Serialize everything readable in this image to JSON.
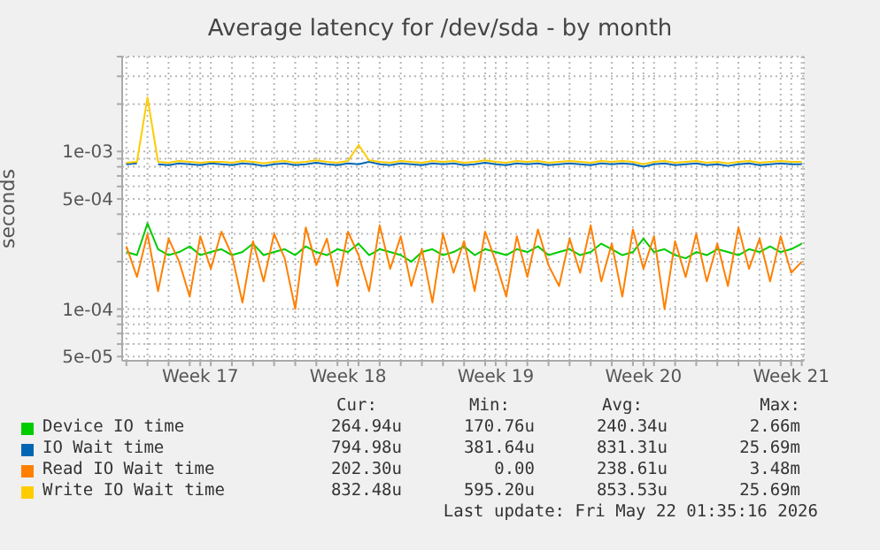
{
  "chart_data": {
    "type": "line",
    "title": "Average latency for /dev/sda - by month",
    "ylabel": "seconds",
    "log": true,
    "grid": true,
    "legend": "bottom",
    "marker": "none",
    "categories": [
      null,
      null,
      null,
      null,
      null,
      null,
      null,
      "Week 17",
      null,
      null,
      null,
      null,
      null,
      null,
      null,
      null,
      null,
      null,
      null,
      null,
      null,
      "Week 18",
      null,
      null,
      null,
      null,
      null,
      null,
      null,
      null,
      null,
      null,
      null,
      null,
      null,
      "Week 19",
      null,
      null,
      null,
      null,
      null,
      null,
      null,
      null,
      null,
      null,
      null,
      null,
      null,
      "Week 20",
      null,
      null,
      null,
      null,
      null,
      null,
      null,
      null,
      null,
      null,
      null,
      null,
      null,
      "Week 21",
      null
    ],
    "ylim": [
      4.7e-05,
      0.004
    ],
    "yticks": [
      {
        "value": 5e-05,
        "label": "5e-05"
      },
      {
        "value": 6e-05,
        "label": null
      },
      {
        "value": 7e-05,
        "label": null
      },
      {
        "value": 8e-05,
        "label": null
      },
      {
        "value": 9e-05,
        "label": null
      },
      {
        "value": 0.0001,
        "label": "1e-04"
      },
      {
        "value": 0.0002,
        "label": null
      },
      {
        "value": 0.0003,
        "label": null
      },
      {
        "value": 0.0004,
        "label": null
      },
      {
        "value": 0.0005,
        "label": "5e-04"
      },
      {
        "value": 0.0006,
        "label": null
      },
      {
        "value": 0.0007,
        "label": null
      },
      {
        "value": 0.0008,
        "label": null
      },
      {
        "value": 0.0009,
        "label": null
      },
      {
        "value": 0.001,
        "label": "1e-03"
      },
      {
        "value": 0.002,
        "label": null
      },
      {
        "value": 0.003,
        "label": null
      },
      {
        "value": 0.004,
        "label": null
      }
    ],
    "series": [
      {
        "name": "Device IO time",
        "color": "#00cc00",
        "values": [
          0.00023,
          0.00022,
          0.00035,
          0.00024,
          0.00022,
          0.00023,
          0.00025,
          0.00022,
          0.00023,
          0.00024,
          0.00022,
          0.00023,
          0.00026,
          0.00022,
          0.00023,
          0.00024,
          0.00022,
          0.00025,
          0.00023,
          0.00022,
          0.00024,
          0.00023,
          0.00026,
          0.00022,
          0.00024,
          0.00023,
          0.00022,
          0.0002,
          0.00023,
          0.00024,
          0.00022,
          0.00023,
          0.00025,
          0.00022,
          0.00024,
          0.00023,
          0.00022,
          0.00024,
          0.00023,
          0.00025,
          0.00022,
          0.00023,
          0.00024,
          0.00022,
          0.00023,
          0.00026,
          0.00024,
          0.00022,
          0.00023,
          0.00028,
          0.00023,
          0.00024,
          0.00022,
          0.00021,
          0.00023,
          0.00022,
          0.00024,
          0.00023,
          0.00022,
          0.00024,
          0.00023,
          0.00025,
          0.00023,
          0.00024,
          0.00026
        ]
      },
      {
        "name": "IO Wait time",
        "color": "#0066b3",
        "values": [
          0.00083,
          0.00084,
          null,
          0.00083,
          0.00082,
          0.00084,
          0.00083,
          0.00082,
          0.00084,
          0.00083,
          0.00082,
          0.00084,
          0.00083,
          0.00081,
          0.00083,
          0.00084,
          0.00082,
          0.00083,
          0.00085,
          0.00083,
          0.00082,
          0.00084,
          0.00083,
          0.00086,
          0.00083,
          0.00082,
          0.00084,
          0.00083,
          0.00082,
          0.00084,
          0.00083,
          0.00084,
          0.00082,
          0.00083,
          0.00085,
          0.00083,
          0.00082,
          0.00084,
          0.00083,
          0.00084,
          0.00082,
          0.00083,
          0.00084,
          0.00083,
          0.00082,
          0.00084,
          0.00083,
          0.00084,
          0.00083,
          0.0008,
          0.00083,
          0.00084,
          0.00082,
          0.00083,
          0.00084,
          0.00082,
          0.00083,
          0.00081,
          0.00083,
          0.00084,
          0.00082,
          0.00083,
          0.00084,
          0.00083,
          0.00083
        ]
      },
      {
        "name": "Read IO Wait time",
        "color": "#ff8000",
        "values": [
          0.00025,
          0.00016,
          0.0003,
          0.00013,
          0.00028,
          0.0002,
          0.00012,
          0.00029,
          0.00018,
          0.00031,
          0.00022,
          0.00011,
          0.00027,
          0.00015,
          0.0003,
          0.00021,
          0.0001,
          0.00033,
          0.00019,
          0.00028,
          0.00014,
          0.00031,
          0.00022,
          0.00013,
          0.00034,
          0.00018,
          0.00029,
          0.00014,
          0.00024,
          0.00011,
          0.0003,
          0.00017,
          0.00027,
          0.00013,
          0.00031,
          0.0002,
          0.00012,
          0.00029,
          0.00016,
          0.00032,
          0.00019,
          0.00014,
          0.00028,
          0.00017,
          0.00034,
          0.00015,
          0.00026,
          0.00012,
          0.00032,
          0.00018,
          0.00029,
          0.0001,
          0.00027,
          0.00016,
          0.0003,
          0.00015,
          0.00026,
          0.00014,
          0.00033,
          0.00018,
          0.00028,
          0.00015,
          0.00029,
          0.00017,
          0.0002
        ]
      },
      {
        "name": "Write IO Wait time",
        "color": "#ffcc00",
        "values": [
          0.00085,
          0.00086,
          0.0022,
          0.00086,
          0.00085,
          0.00087,
          0.00086,
          0.00085,
          0.00086,
          0.00086,
          0.00085,
          0.00087,
          0.00086,
          0.00084,
          0.00086,
          0.00087,
          0.00085,
          0.00086,
          0.00088,
          0.00086,
          0.00085,
          0.00087,
          0.0011,
          0.00088,
          0.00086,
          0.00085,
          0.00087,
          0.00086,
          0.00085,
          0.00087,
          0.00086,
          0.00087,
          0.00085,
          0.00086,
          0.00088,
          0.00086,
          0.00085,
          0.00087,
          0.00086,
          0.00087,
          0.00085,
          0.00086,
          0.00087,
          0.00086,
          0.00085,
          0.00087,
          0.00086,
          0.00087,
          0.00086,
          0.00083,
          0.00086,
          0.00087,
          0.00085,
          0.00086,
          0.00087,
          0.00085,
          0.00086,
          0.00084,
          0.00086,
          0.00087,
          0.00085,
          0.00086,
          0.00087,
          0.00086,
          0.00086
        ]
      }
    ],
    "annotations": [
      "Cur:",
      "Min:",
      "Avg:",
      "Max:",
      "264.94u",
      "170.76u",
      "240.34u",
      "2.66m",
      "794.98u",
      "381.64u",
      "831.31u",
      "25.69m",
      "202.30u",
      "0.00",
      "238.61u",
      "3.48m",
      "832.48u",
      "595.20u",
      "853.53u",
      "25.69m",
      "Last update: Fri May 22 01:35:16 2026"
    ]
  }
}
